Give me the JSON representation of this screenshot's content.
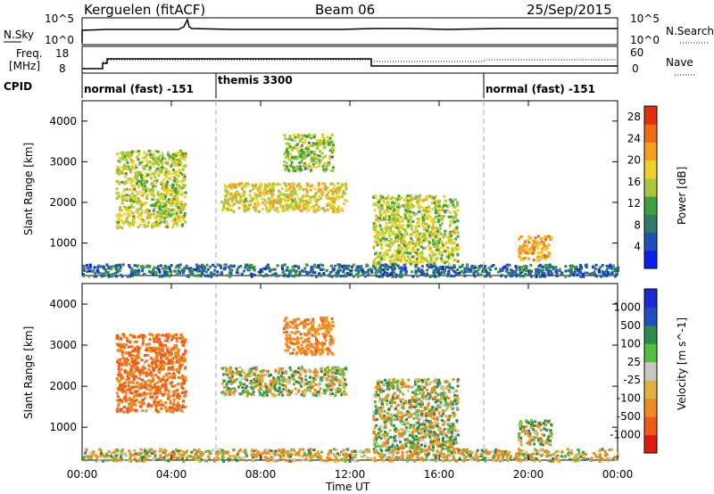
{
  "header": {
    "station": "Kerguelen (fitACF)",
    "beam": "Beam 06",
    "date": "25/Sep/2015"
  },
  "noise_panel": {
    "left_label": "N.Sky",
    "right_label": "N.Search",
    "left_ticks": [
      "10^5",
      "10^0"
    ],
    "right_ticks": [
      "10^5",
      "10^0"
    ]
  },
  "freq_panel": {
    "left_label_top": "Freq.",
    "left_label_bottom": "[MHz]",
    "left_ticks": [
      "18",
      "8"
    ],
    "right_label": "Nave",
    "right_ticks": [
      "60",
      "0"
    ]
  },
  "cpid": {
    "label": "CPID",
    "modes": [
      {
        "name": "normal (fast) -151",
        "start": "00:00",
        "end": "06:00"
      },
      {
        "name": "themis 3300",
        "start": "06:00",
        "end": "18:00"
      },
      {
        "name": "normal (fast) -151",
        "start": "18:00",
        "end": "24:00"
      }
    ]
  },
  "colors": {
    "power_scale": [
      "#0a1ef0",
      "#1f4fb8",
      "#2f7a6a",
      "#3fa040",
      "#a8c83a",
      "#f0d02a",
      "#f5a020",
      "#f06a18",
      "#e03010"
    ],
    "velocity_scale": [
      "#1a2ad0",
      "#2050c0",
      "#2f8a50",
      "#50c040",
      "#c8c8c0",
      "#e0b040",
      "#f08a20",
      "#f05a18",
      "#e01a10"
    ],
    "ground_scatter": "#c8c8c0"
  },
  "chart_data": [
    {
      "type": "heatmap",
      "name": "power-panel",
      "xlabel": "",
      "ylabel": "Slant Range [km]",
      "x_range_hours": [
        0,
        24
      ],
      "ylim": [
        200,
        4500
      ],
      "yticks": [
        1000,
        2000,
        3000,
        4000
      ],
      "colorbar": {
        "label": "Power [dB]",
        "ticks": [
          4,
          8,
          12,
          16,
          20,
          24,
          28
        ],
        "range": [
          0,
          30
        ]
      },
      "regions": [
        {
          "t0": 1.5,
          "t1": 4.6,
          "r0": 1400,
          "r1": 3300,
          "value": 16
        },
        {
          "t0": 6.2,
          "t1": 11.8,
          "r0": 1800,
          "r1": 2500,
          "value": 18
        },
        {
          "t0": 9.0,
          "t1": 11.2,
          "r0": 2800,
          "r1": 3700,
          "value": 14
        },
        {
          "t0": 13.0,
          "t1": 16.8,
          "r0": 500,
          "r1": 2200,
          "value": 16
        },
        {
          "t0": 19.5,
          "t1": 21.0,
          "r0": 600,
          "r1": 1200,
          "value": 22
        },
        {
          "t0": 0.0,
          "t1": 24.0,
          "r0": 200,
          "r1": 500,
          "value": 6
        }
      ]
    },
    {
      "type": "heatmap",
      "name": "velocity-panel",
      "xlabel": "Time UT",
      "ylabel": "Slant Range [km]",
      "x_range_hours": [
        0,
        24
      ],
      "xticks": [
        "00:00",
        "04:00",
        "08:00",
        "12:00",
        "16:00",
        "20:00",
        "00:00"
      ],
      "ylim": [
        200,
        4500
      ],
      "yticks": [
        1000,
        2000,
        3000,
        4000
      ],
      "colorbar": {
        "label": "Velocity [m s^-1]",
        "ticks": [
          "1000",
          "500",
          "100",
          "25",
          "-25",
          "-100",
          "-500",
          "-1000"
        ]
      },
      "regions": [
        {
          "t0": 1.5,
          "t1": 4.6,
          "r0": 1400,
          "r1": 3300,
          "value": -300
        },
        {
          "t0": 6.2,
          "t1": 11.8,
          "r0": 1800,
          "r1": 2500,
          "value": 0
        },
        {
          "t0": 9.0,
          "t1": 11.2,
          "r0": 2800,
          "r1": 3700,
          "value": -200
        },
        {
          "t0": 13.0,
          "t1": 16.8,
          "r0": 500,
          "r1": 2200,
          "value": 0
        },
        {
          "t0": 19.5,
          "t1": 21.0,
          "r0": 600,
          "r1": 1200,
          "value": 0
        },
        {
          "t0": 0.0,
          "t1": 24.0,
          "r0": 200,
          "r1": 500,
          "value": -50
        }
      ]
    }
  ]
}
